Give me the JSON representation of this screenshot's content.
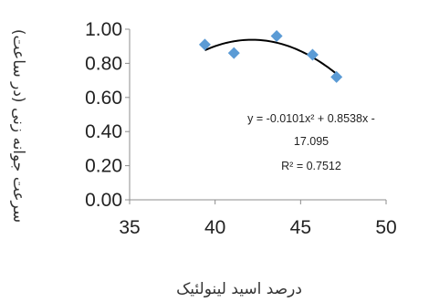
{
  "chart_data": {
    "type": "scatter",
    "title": "",
    "xlabel": "درصد اسید لینولئیک",
    "ylabel": "سرعت جوانه زنی (در ساعت)",
    "xlim": [
      35,
      50
    ],
    "ylim": [
      0,
      1
    ],
    "xticks": [
      "35",
      "40",
      "45",
      "50"
    ],
    "yticks": [
      "0.00",
      "0.20",
      "0.40",
      "0.60",
      "0.80",
      "1.00"
    ],
    "grid": false,
    "legend": "none",
    "marker": "diamond",
    "marker_color": "#5b9bd5",
    "trendline_color": "#000000",
    "series": [
      {
        "x": [
          39.4,
          41.1,
          43.6,
          45.7,
          47.1
        ],
        "y": [
          0.91,
          0.86,
          0.96,
          0.85,
          0.72
        ]
      }
    ],
    "trendline": {
      "type": "polynomial",
      "order": 2,
      "x_range": [
        39.4,
        47.1
      ]
    },
    "annotation": {
      "line1": "y = -0.0101x² + 0.8538x -",
      "line2": "17.095",
      "line3": "R² = 0.7512"
    }
  }
}
